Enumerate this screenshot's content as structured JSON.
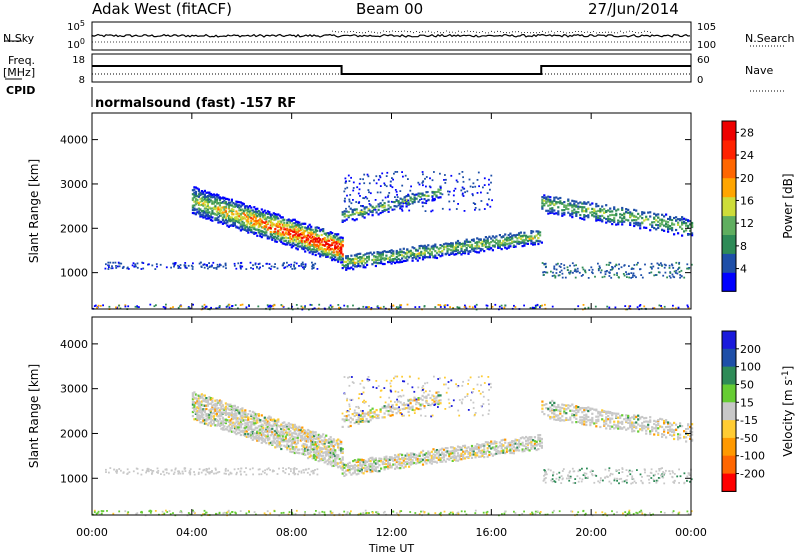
{
  "header": {
    "station": "Adak West (fitACF)",
    "beam": "Beam 00",
    "date": "27/Jun/2014"
  },
  "strip": {
    "nsky_label": "N.Sky",
    "nsearch_label": "N.Search",
    "freq_label_1": "Freq.",
    "freq_label_2": "[MHz]",
    "nave_label": "Nave",
    "cpid_label": "CPID",
    "cpid_text": "normalsound (fast) -157 RF",
    "noise_left_ticks": [
      "10^5",
      "10^0"
    ],
    "noise_right_ticks": [
      "10^5",
      "10^0"
    ],
    "freq_ticks": [
      "18",
      "8"
    ],
    "nave_ticks": [
      "60",
      "0"
    ]
  },
  "colors": {
    "power_scale": [
      "#0000ff",
      "#1e4fa8",
      "#2e8b57",
      "#5fae5f",
      "#cddc39",
      "#ffa500",
      "#ff6600",
      "#ff2200",
      "#ee0000"
    ],
    "velocity_scale": [
      "#1a1adb",
      "#1e4fa8",
      "#2e8b57",
      "#66cc33",
      "#c8c8c8",
      "#ffcc33",
      "#ff9900",
      "#ff6600",
      "#ff0000"
    ]
  },
  "chart_data": [
    {
      "type": "heatmap",
      "title": "Power",
      "xlabel": "Time UT",
      "ylabel": "Slant Range [km]",
      "x_ticks": [
        "00:00",
        "04:00",
        "08:00",
        "12:00",
        "16:00",
        "20:00",
        "00:00"
      ],
      "y_ticks": [
        "1000",
        "2000",
        "3000",
        "4000"
      ],
      "xlim_hours": [
        0,
        24
      ],
      "ylim_km": [
        180,
        4600
      ],
      "colorbar": {
        "label": "Power [dB]",
        "ticks": [
          "4",
          "8",
          "12",
          "16",
          "20",
          "24",
          "28"
        ],
        "range": [
          0,
          30
        ]
      },
      "features": [
        {
          "name": "main echo band",
          "start_h": 4.0,
          "end_h": 10.0,
          "range_start_km": 2650,
          "range_end_km": 1550,
          "peak_power_db": 30
        },
        {
          "name": "lower band",
          "start_h": 10.0,
          "end_h": 18.0,
          "range_start_km": 1250,
          "range_end_km": 1850,
          "peak_power_db": 16
        },
        {
          "name": "upper band",
          "start_h": 10.0,
          "end_h": 14.0,
          "range_start_km": 2300,
          "range_end_km": 2850,
          "peak_power_db": 14
        },
        {
          "name": "late band",
          "start_h": 18.0,
          "end_h": 24.0,
          "range_start_km": 2600,
          "range_end_km": 2050,
          "peak_power_db": 14
        }
      ]
    },
    {
      "type": "heatmap",
      "title": "Velocity",
      "xlabel": "Time UT",
      "ylabel": "Slant Range [km]",
      "x_ticks": [
        "00:00",
        "04:00",
        "08:00",
        "12:00",
        "16:00",
        "20:00",
        "00:00"
      ],
      "y_ticks": [
        "1000",
        "2000",
        "3000",
        "4000"
      ],
      "xlim_hours": [
        0,
        24
      ],
      "ylim_km": [
        180,
        4600
      ],
      "colorbar": {
        "label": "Velocity [m s^-1]",
        "ticks": [
          "200",
          "100",
          "50",
          "15",
          "-15",
          "-50",
          "-100",
          "-200"
        ],
        "range": [
          -250,
          250
        ]
      }
    }
  ]
}
